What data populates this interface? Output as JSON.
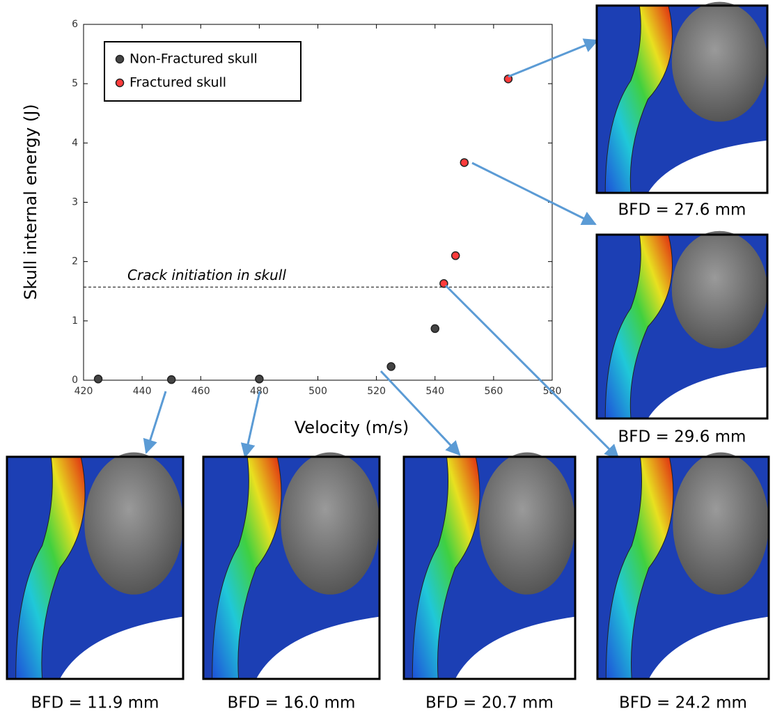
{
  "chart_data": {
    "type": "scatter",
    "x_label": "Velocity (m/s)",
    "y_label": "Skull internal energy (J)",
    "xlim": [
      420,
      580
    ],
    "xticks": [
      420,
      440,
      460,
      480,
      500,
      520,
      540,
      560,
      580
    ],
    "ylim": [
      0,
      6
    ],
    "yticks": [
      0,
      1,
      2,
      3,
      4,
      5,
      6
    ],
    "grid": false,
    "legend": "upper left",
    "reference_line": {
      "value": 1.57,
      "label": "Crack initiation in skull"
    },
    "series": [
      {
        "name": "Non-Fractured skull",
        "color": "#444444",
        "x": [
          425,
          450,
          480,
          525,
          540
        ],
        "values": [
          0.02,
          0.01,
          0.02,
          0.23,
          0.87
        ]
      },
      {
        "name": "Fractured skull",
        "color": "#ff3b3b",
        "x": [
          543,
          547,
          550,
          565
        ],
        "values": [
          1.63,
          2.1,
          3.67,
          5.08
        ]
      }
    ]
  },
  "panels": [
    {
      "caption": "BFD = 27.6 mm"
    },
    {
      "caption": "BFD = 29.6 mm"
    },
    {
      "caption": "BFD = 11.9 mm"
    },
    {
      "caption": "BFD = 16.0 mm"
    },
    {
      "caption": "BFD = 20.7 mm"
    },
    {
      "caption": "BFD = 24.2 mm"
    }
  ]
}
